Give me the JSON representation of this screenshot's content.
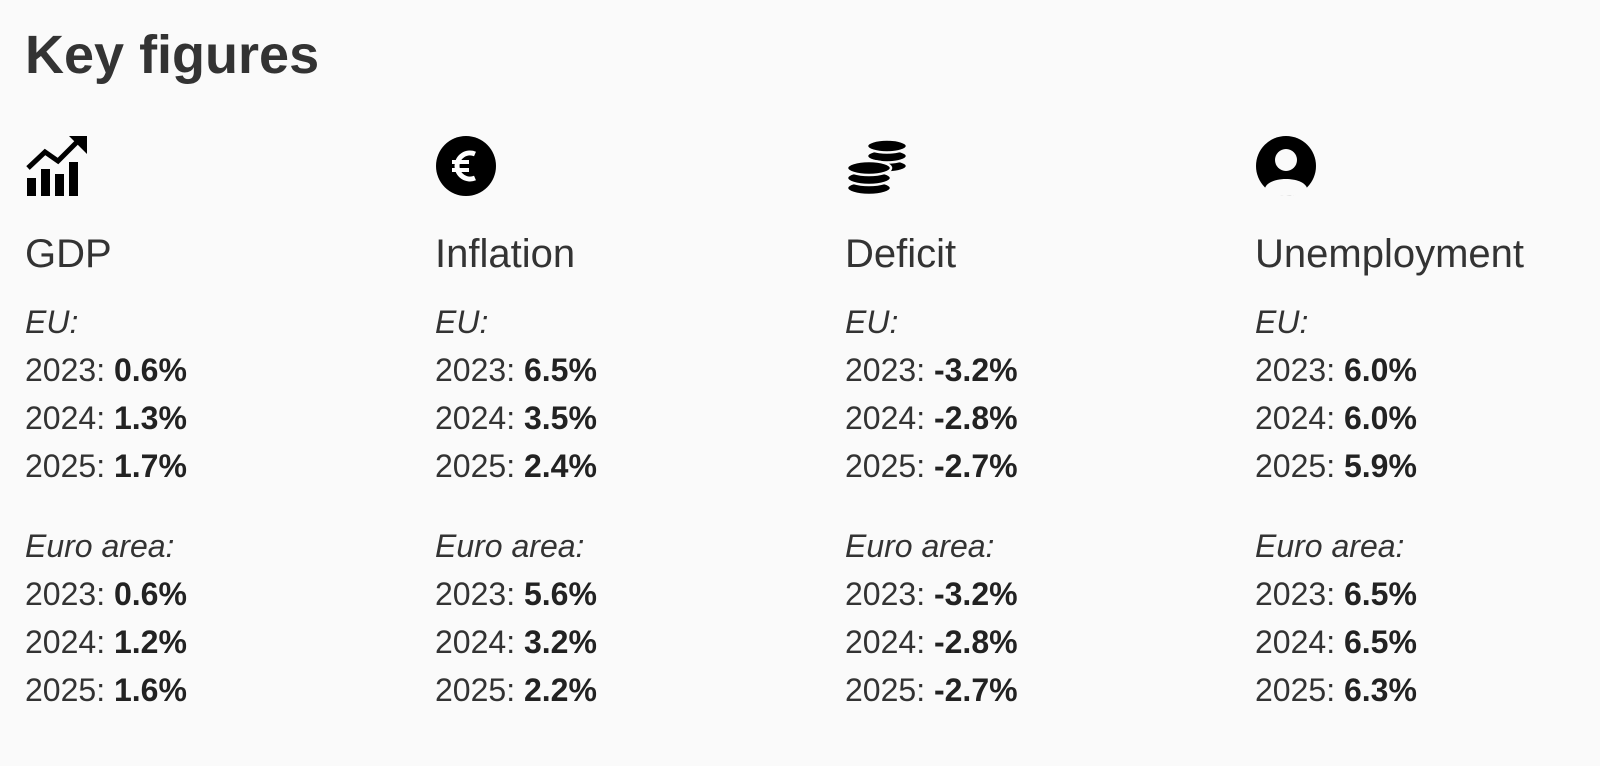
{
  "title": "Key figures",
  "colors": {
    "text": "#333333",
    "icon": "#000000",
    "background": "#fafafa"
  },
  "columns": [
    {
      "icon": "growth-chart-icon",
      "title": "GDP",
      "groups": [
        {
          "label": "EU:",
          "rows": [
            {
              "year": "2023:",
              "value": "0.6%"
            },
            {
              "year": "2024:",
              "value": "1.3%"
            },
            {
              "year": "2025:",
              "value": "1.7%"
            }
          ]
        },
        {
          "label": "Euro area:",
          "rows": [
            {
              "year": "2023:",
              "value": "0.6%"
            },
            {
              "year": "2024:",
              "value": "1.2%"
            },
            {
              "year": "2025:",
              "value": "1.6%"
            }
          ]
        }
      ]
    },
    {
      "icon": "euro-coin-icon",
      "title": "Inflation",
      "groups": [
        {
          "label": "EU:",
          "rows": [
            {
              "year": "2023:",
              "value": "6.5%"
            },
            {
              "year": "2024:",
              "value": "3.5%"
            },
            {
              "year": "2025:",
              "value": "2.4%"
            }
          ]
        },
        {
          "label": "Euro area:",
          "rows": [
            {
              "year": "2023:",
              "value": "5.6%"
            },
            {
              "year": "2024:",
              "value": "3.2%"
            },
            {
              "year": "2025:",
              "value": "2.2%"
            }
          ]
        }
      ]
    },
    {
      "icon": "coins-stack-icon",
      "title": "Deficit",
      "groups": [
        {
          "label": "EU:",
          "rows": [
            {
              "year": "2023:",
              "value": "-3.2%"
            },
            {
              "year": "2024:",
              "value": "-2.8%"
            },
            {
              "year": "2025:",
              "value": "-2.7%"
            }
          ]
        },
        {
          "label": "Euro area:",
          "rows": [
            {
              "year": "2023:",
              "value": "-3.2%"
            },
            {
              "year": "2024:",
              "value": "-2.8%"
            },
            {
              "year": "2025:",
              "value": "-2.7%"
            }
          ]
        }
      ]
    },
    {
      "icon": "user-circle-icon",
      "title": "Unemployment",
      "groups": [
        {
          "label": "EU:",
          "rows": [
            {
              "year": "2023:",
              "value": "6.0%"
            },
            {
              "year": "2024:",
              "value": "6.0%"
            },
            {
              "year": "2025:",
              "value": "5.9%"
            }
          ]
        },
        {
          "label": "Euro area:",
          "rows": [
            {
              "year": "2023:",
              "value": "6.5%"
            },
            {
              "year": "2024:",
              "value": "6.5%"
            },
            {
              "year": "2025:",
              "value": "6.3%"
            }
          ]
        }
      ]
    }
  ]
}
